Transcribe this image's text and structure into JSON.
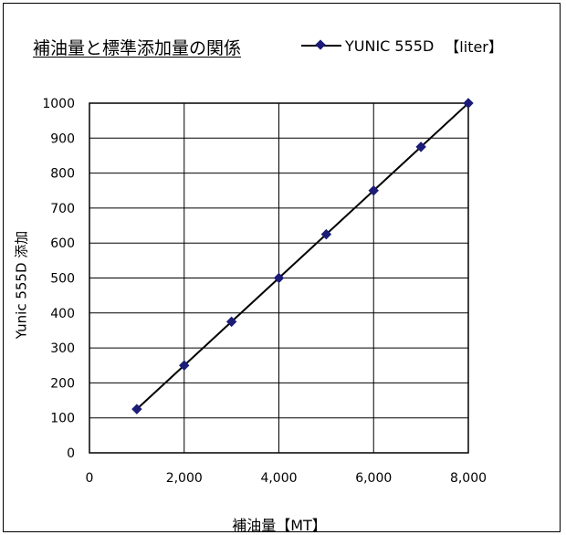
{
  "chart_data": {
    "type": "line",
    "title": "補油量と標準添加量の関係",
    "xlabel": "補油量【MT】",
    "ylabel": "Yunic 555D 添加",
    "xlim": [
      0,
      8000
    ],
    "ylim": [
      0,
      1000
    ],
    "x_ticks": [
      "0",
      "2,000",
      "4,000",
      "6,000",
      "8,000"
    ],
    "y_ticks": [
      "0",
      "100",
      "200",
      "300",
      "400",
      "500",
      "600",
      "700",
      "800",
      "900",
      "1000"
    ],
    "grid": true,
    "legend_position": "top-right",
    "series": [
      {
        "name": "YUNIC 555D",
        "unit_label": "【liter】",
        "color": "#1c1c78",
        "marker": "diamond",
        "x": [
          1000,
          2000,
          3000,
          4000,
          5000,
          6000,
          7000,
          8000
        ],
        "y": [
          125,
          250,
          375,
          500,
          625,
          750,
          875,
          1000
        ]
      }
    ]
  }
}
